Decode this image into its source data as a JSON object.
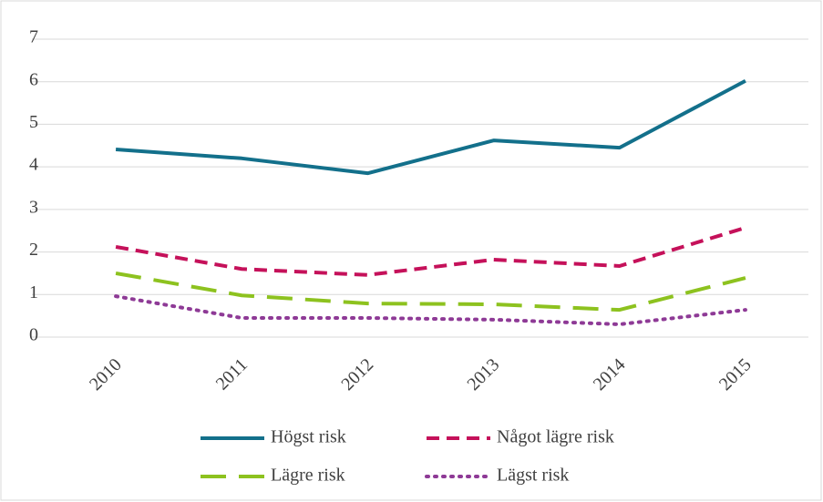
{
  "chart_data": {
    "type": "line",
    "categories": [
      "2010",
      "2011",
      "2012",
      "2013",
      "2014",
      "2015"
    ],
    "ylim": [
      0,
      7
    ],
    "yticks": [
      0,
      1,
      2,
      3,
      4,
      5,
      6,
      7
    ],
    "grid": true,
    "legend": "bottom",
    "series": [
      {
        "name": "Högst risk",
        "color": "#13708b",
        "style": "solid",
        "values": [
          4.41,
          4.2,
          3.85,
          4.62,
          4.45,
          6.02
        ]
      },
      {
        "name": "Något lägre risk",
        "color": "#c5115a",
        "style": "dashed",
        "values": [
          2.12,
          1.6,
          1.46,
          1.82,
          1.67,
          2.57
        ]
      },
      {
        "name": "Lägre risk",
        "color": "#8dc21f",
        "style": "longdash",
        "values": [
          1.5,
          0.98,
          0.79,
          0.77,
          0.64,
          1.39
        ]
      },
      {
        "name": "Lägst risk",
        "color": "#8e3a96",
        "style": "dotted",
        "values": [
          0.96,
          0.45,
          0.45,
          0.41,
          0.3,
          0.64
        ]
      }
    ]
  }
}
